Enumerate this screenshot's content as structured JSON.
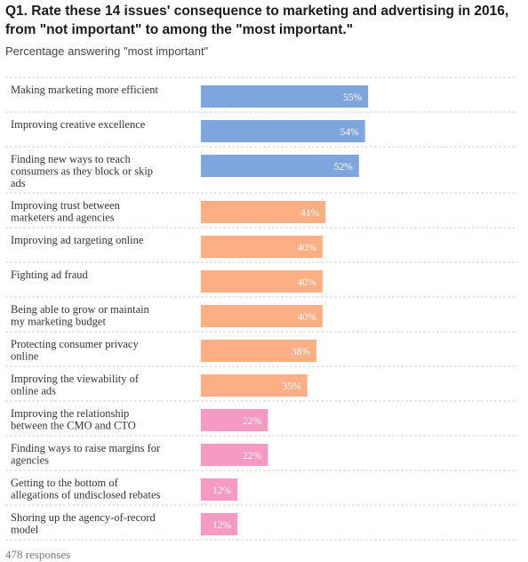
{
  "chart_data": {
    "type": "bar",
    "orientation": "horizontal",
    "title": "Q1. Rate these 14 issues' consequence to marketing and advertising in 2016, from \"not important\" to among the \"most important.\"",
    "subtitle": "Percentage answering \"most important\"",
    "categories": [
      [
        "Making marketing more efficient"
      ],
      [
        "Improving creative excellence"
      ],
      [
        "Finding new ways to reach",
        "consumers as they block or skip",
        "ads"
      ],
      [
        "Improving trust between",
        "marketers and agencies"
      ],
      [
        "Improving ad targeting online"
      ],
      [
        "Fighting ad fraud"
      ],
      [
        "Being able to grow or maintain",
        "my marketing budget"
      ],
      [
        "Protecting consumer privacy",
        "online"
      ],
      [
        "Improving the viewability of",
        "online ads"
      ],
      [
        "Improving the relationship",
        "between the CMO and CTO"
      ],
      [
        "Finding ways to raise margins for",
        "agencies"
      ],
      [
        "Getting to the bottom of",
        "allegations of undisclosed rebates"
      ],
      [
        "Shoring up the agency-of-record",
        "model"
      ]
    ],
    "values": [
      55,
      54,
      52,
      41,
      40,
      40,
      40,
      38,
      35,
      22,
      22,
      12,
      12
    ],
    "value_labels": [
      "55%",
      "54%",
      "52%",
      "41%",
      "40%",
      "40%",
      "40%",
      "38%",
      "35%",
      "22%",
      "22%",
      "12%",
      "12%"
    ],
    "colors": [
      "#7ea6dc",
      "#7ea6dc",
      "#7ea6dc",
      "#fcae84",
      "#fcae84",
      "#fcae84",
      "#fcae84",
      "#fcae84",
      "#fcae84",
      "#f59ac0",
      "#f59ac0",
      "#f59ac0",
      "#f59ac0"
    ],
    "xlim": [
      0,
      100
    ],
    "grid": false,
    "xlabel": "",
    "ylabel": ""
  },
  "footer": "478 responses"
}
